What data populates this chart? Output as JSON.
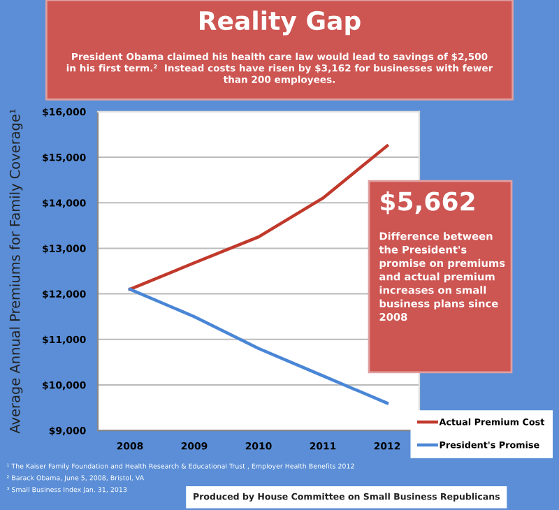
{
  "chart_data": {
    "type": "line",
    "title": "Reality Gap",
    "subtitle": "President Obama claimed his health care law would lead to savings of $2,500\nin his first term.²  Instead costs have risen by $3,162 for businesses with fewer\nthan 200 employees.",
    "ylabel": "Average Annual Premiums for Family Coverage¹",
    "categories": [
      "2008",
      "2009",
      "2010",
      "2011",
      "2012"
    ],
    "series": [
      {
        "name": "Actual Premium Cost",
        "color": "#c0392b",
        "values": [
          12100,
          12680,
          13250,
          14100,
          15250
        ]
      },
      {
        "name": "President's Promise",
        "color": "#4a86d6",
        "values": [
          12100,
          11500,
          10800,
          10200,
          9600
        ]
      }
    ],
    "ylim": [
      9000,
      16000
    ],
    "yticks": [
      {
        "value": 9000,
        "label": "$9,000"
      },
      {
        "value": 10000,
        "label": "$10,000"
      },
      {
        "value": 11000,
        "label": "$11,000"
      },
      {
        "value": 12000,
        "label": "$12,000"
      },
      {
        "value": 13000,
        "label": "$13,000"
      },
      {
        "value": 14000,
        "label": "$14,000"
      },
      {
        "value": 15000,
        "label": "$15,000"
      },
      {
        "value": 16000,
        "label": "$16,000"
      }
    ],
    "grid": "y",
    "legend": "bottom right",
    "marker": "none",
    "line_style": "solid",
    "annotations": [
      "$5,662",
      "Difference between\nthe President's\npromise on premiums\nand actual premium\nincreases on small\nbusiness plans since\n2008",
      "¹ The Kaiser Family Foundation and Health Research & Educational Trust , Employer Health Benefits 2012",
      "² Barack Obama, June 5, 2008, Bristol, VA",
      "³ Small Business Index Jan. 31, 2013",
      "Produced by House Committee on Small Business Republicans"
    ]
  }
}
